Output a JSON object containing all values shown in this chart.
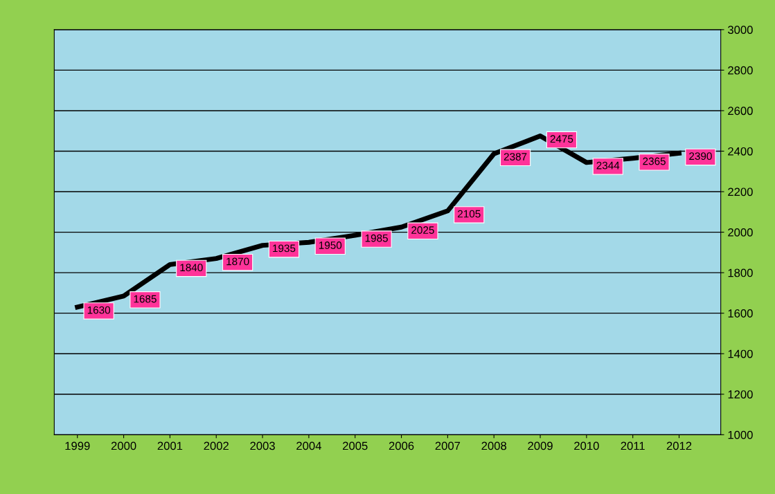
{
  "chart_data": {
    "type": "line",
    "categories": [
      "1999",
      "2000",
      "2001",
      "2002",
      "2003",
      "2004",
      "2005",
      "2006",
      "2007",
      "2008",
      "2009",
      "2010",
      "2011",
      "2012"
    ],
    "series": [
      {
        "color": "#000000",
        "values": [
          1630,
          1685,
          1840,
          1870,
          1935,
          1950,
          1985,
          2025,
          2105,
          2387,
          2475,
          2344,
          2365,
          2390
        ]
      }
    ],
    "ylim": [
      1000,
      3000
    ],
    "yticks": [
      1000,
      1200,
      1400,
      1600,
      1800,
      2000,
      2200,
      2400,
      2600,
      2800,
      3000
    ],
    "grid": "y",
    "data_labels": true,
    "marker": "none",
    "line_style": "solid"
  }
}
